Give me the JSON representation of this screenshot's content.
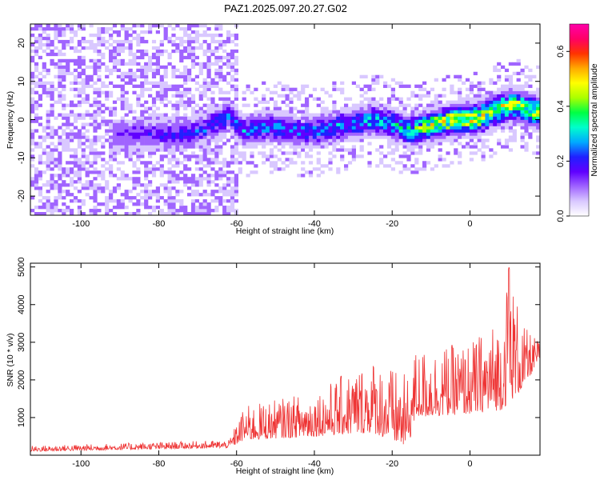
{
  "title": "PAZ1.2025.097.20.27.G02",
  "colors": {
    "snr_line": "#ee3333",
    "axis": "#000000",
    "colormap": [
      "#ffffff",
      "#d9c8ff",
      "#a064ff",
      "#6000ff",
      "#2020ff",
      "#00aaff",
      "#00ffcc",
      "#00ff44",
      "#aaff00",
      "#ffff00",
      "#ffaa00",
      "#ff3300",
      "#ff0066",
      "#ff00aa"
    ]
  },
  "chart_data": [
    {
      "type": "heatmap",
      "title": "PAZ1.2025.097.20.27.G02",
      "xlabel": "Height of straight line (km)",
      "ylabel": "Frequency (Hz)",
      "xlim": [
        -113,
        18
      ],
      "ylim": [
        -25,
        25
      ],
      "x_ticks": [
        -100,
        -80,
        -60,
        -40,
        -20,
        0
      ],
      "x_tick_labels": [
        "-100",
        "-80",
        "-60",
        "-40",
        "-20",
        "0"
      ],
      "y_ticks": [
        -20,
        -10,
        0,
        10,
        20
      ],
      "y_tick_labels": [
        "-20",
        "-10",
        "0",
        "10",
        "20"
      ],
      "colorbar": {
        "label": "Normalized spectral amplitude",
        "range": [
          0.0,
          0.7
        ],
        "ticks": [
          0.0,
          0.2,
          0.4,
          0.6
        ],
        "tick_labels": [
          "0.0",
          "0.2",
          "0.4",
          "0.6"
        ]
      },
      "ridge_track": [
        {
          "x": -90,
          "y": -4
        },
        {
          "x": -80,
          "y": -4
        },
        {
          "x": -70,
          "y": -3
        },
        {
          "x": -62,
          "y": 1
        },
        {
          "x": -58,
          "y": -3
        },
        {
          "x": -50,
          "y": -2
        },
        {
          "x": -45,
          "y": -3
        },
        {
          "x": -40,
          "y": -3
        },
        {
          "x": -35,
          "y": -2
        },
        {
          "x": -30,
          "y": -1
        },
        {
          "x": -25,
          "y": 0
        },
        {
          "x": -20,
          "y": -1
        },
        {
          "x": -16,
          "y": -3
        },
        {
          "x": -12,
          "y": -2
        },
        {
          "x": -8,
          "y": -1
        },
        {
          "x": -4,
          "y": 0
        },
        {
          "x": 0,
          "y": 0
        },
        {
          "x": 4,
          "y": 1
        },
        {
          "x": 8,
          "y": 3
        },
        {
          "x": 12,
          "y": 4
        },
        {
          "x": 16,
          "y": 2
        },
        {
          "x": 18,
          "y": 2
        }
      ],
      "ridge_amplitude": [
        {
          "x": -90,
          "v": 0.15
        },
        {
          "x": -62,
          "v": 0.25
        },
        {
          "x": -40,
          "v": 0.25
        },
        {
          "x": -20,
          "v": 0.3
        },
        {
          "x": -10,
          "v": 0.45
        },
        {
          "x": 0,
          "v": 0.5
        },
        {
          "x": 10,
          "v": 0.45
        },
        {
          "x": 18,
          "v": 0.45
        }
      ]
    },
    {
      "type": "line",
      "xlabel": "Height of straight line (km)",
      "ylabel": "SNR (10 * v/v)",
      "xlim": [
        -113,
        18
      ],
      "ylim": [
        0,
        5100
      ],
      "x_ticks": [
        -100,
        -80,
        -60,
        -40,
        -20,
        0
      ],
      "x_tick_labels": [
        "-100",
        "-80",
        "-60",
        "-40",
        "-20",
        "0"
      ],
      "y_ticks": [
        1000,
        2000,
        3000,
        4000,
        5000
      ],
      "y_tick_labels": [
        "1000",
        "2000",
        "3000",
        "4000",
        "5000"
      ],
      "envelope": [
        {
          "x": -113,
          "base": 100,
          "peak": 250
        },
        {
          "x": -62,
          "base": 200,
          "peak": 400
        },
        {
          "x": -58,
          "base": 400,
          "peak": 1300
        },
        {
          "x": -40,
          "base": 500,
          "peak": 1700
        },
        {
          "x": -25,
          "base": 600,
          "peak": 2600
        },
        {
          "x": -16,
          "base": 200,
          "peak": 2100
        },
        {
          "x": -14,
          "base": 1000,
          "peak": 2800
        },
        {
          "x": 0,
          "base": 1100,
          "peak": 3000
        },
        {
          "x": 8,
          "base": 1200,
          "peak": 3700
        },
        {
          "x": 10,
          "base": 1400,
          "peak": 5000
        },
        {
          "x": 14,
          "base": 1800,
          "peak": 3400
        },
        {
          "x": 18,
          "base": 2600,
          "peak": 3000
        }
      ]
    }
  ]
}
